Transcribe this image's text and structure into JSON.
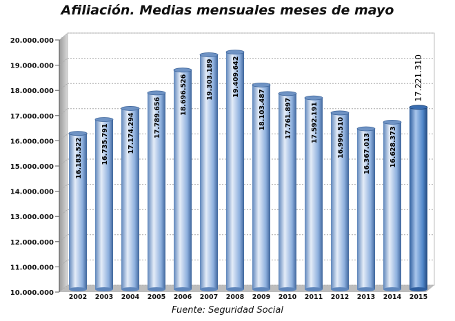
{
  "title": "Afiliación. Medias mensuales meses de mayo",
  "source": "Fuente: Seguridad Social",
  "colors": {
    "bar_main": "#7fa6d8",
    "bar_highlight": "#dfe9f7",
    "bar_last": "#4f86c9",
    "grid": "#aaaaaa",
    "wall": "#ffffff",
    "floor": "#bdbdbd"
  },
  "chart_data": {
    "type": "bar",
    "title": "Afiliación. Medias mensuales meses de mayo",
    "xlabel": "",
    "ylabel": "",
    "categories": [
      "2002",
      "2003",
      "2004",
      "2005",
      "2006",
      "2007",
      "2008",
      "2009",
      "2010",
      "2011",
      "2012",
      "2013",
      "2014",
      "2015"
    ],
    "values": [
      16183522,
      16735791,
      17174294,
      17789656,
      18696526,
      19303189,
      19409642,
      18103487,
      17761897,
      17592191,
      16996510,
      16367013,
      16628373,
      17221310
    ],
    "value_labels": [
      "16.183.522",
      "16.735.791",
      "17.174.294",
      "17.789.656",
      "18.696.526",
      "19.303.189",
      "19.409.642",
      "18.103.487",
      "17.761.897",
      "17.592.191",
      "16.996.510",
      "16.367.013",
      "16.628.373",
      "17.221.310"
    ],
    "ylim": [
      10000000,
      20000000
    ],
    "yticks": [
      10000000,
      11000000,
      12000000,
      13000000,
      14000000,
      15000000,
      16000000,
      17000000,
      18000000,
      19000000,
      20000000
    ],
    "ytick_labels": [
      "10.000.000",
      "11.000.000",
      "12.000.000",
      "13.000.000",
      "14.000.000",
      "15.000.000",
      "16.000.000",
      "17.000.000",
      "18.000.000",
      "19.000.000",
      "20.000.000"
    ],
    "grid": true,
    "legend": "none"
  }
}
